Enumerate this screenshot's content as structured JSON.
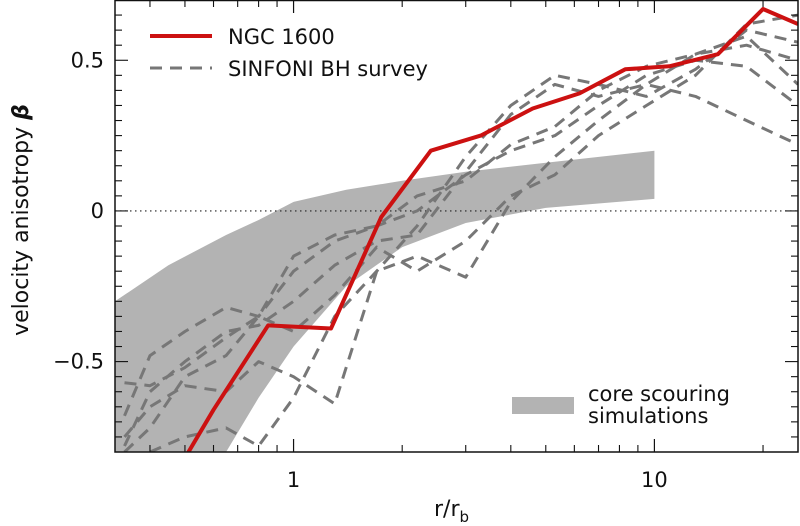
{
  "chart_data": {
    "type": "line",
    "xscale": "log",
    "xlim": [
      0.32,
      25
    ],
    "ylim": [
      -0.8,
      0.7
    ],
    "xlabel": "r/r",
    "xlabel_sub": "b",
    "ylabel_main": "velocity anisotropy ",
    "ylabel_symbol": "β",
    "x_ticks": [
      {
        "value": 1,
        "label": "1"
      },
      {
        "value": 10,
        "label": "10"
      }
    ],
    "y_ticks": [
      {
        "value": -0.5,
        "label": "−0.5"
      },
      {
        "value": 0,
        "label": "0"
      },
      {
        "value": 0.5,
        "label": "0.5"
      }
    ],
    "reference_line": {
      "y": 0,
      "style": "dotted"
    },
    "legend_position": "top-left",
    "colors": {
      "ngc": "#cc1111",
      "survey": "#777777",
      "band": "#b3b3b3"
    },
    "series": [
      {
        "name": "NGC 1600",
        "style": "solid",
        "x": [
          0.5,
          0.6,
          0.85,
          1.27,
          1.75,
          2.4,
          3.3,
          4.6,
          6.2,
          8.3,
          11,
          15,
          20,
          25
        ],
        "y": [
          -0.82,
          -0.66,
          -0.38,
          -0.39,
          -0.02,
          0.2,
          0.25,
          0.34,
          0.39,
          0.47,
          0.48,
          0.52,
          0.67,
          0.62
        ]
      },
      {
        "name": "SINFONI BH survey",
        "style": "dashed",
        "lines": [
          {
            "x": [
              0.34,
              0.4,
              0.5,
              0.65,
              0.8,
              1.0,
              1.3,
              1.7,
              2.2,
              3.0,
              4.0,
              5.3,
              7.0,
              9.5,
              13,
              18,
              25
            ],
            "y": [
              -0.78,
              -0.6,
              -0.5,
              -0.4,
              -0.38,
              -0.3,
              -0.18,
              -0.1,
              -0.08,
              0.13,
              0.32,
              0.42,
              0.38,
              0.42,
              0.52,
              0.55,
              0.5
            ]
          },
          {
            "x": [
              0.34,
              0.4,
              0.5,
              0.65,
              0.8,
              1.0,
              1.3,
              1.7,
              2.2,
              3.0,
              4.0,
              5.3,
              7.0,
              9.5,
              13,
              18,
              25
            ],
            "y": [
              -0.68,
              -0.48,
              -0.4,
              -0.32,
              -0.35,
              -0.2,
              -0.1,
              -0.05,
              0.0,
              0.12,
              0.2,
              0.25,
              0.35,
              0.45,
              0.5,
              0.48,
              0.35
            ]
          },
          {
            "x": [
              0.34,
              0.4,
              0.5,
              0.65,
              0.8,
              1.0,
              1.3,
              1.7,
              2.2,
              3.0,
              4.0,
              5.3,
              7.0,
              9.5,
              13,
              18,
              25
            ],
            "y": [
              -0.8,
              -0.72,
              -0.55,
              -0.48,
              -0.35,
              -0.15,
              -0.08,
              -0.05,
              0.05,
              0.1,
              0.22,
              0.28,
              0.4,
              0.48,
              0.52,
              0.58,
              0.42
            ]
          },
          {
            "x": [
              0.34,
              0.4,
              0.5,
              0.65,
              0.8,
              1.0,
              1.3,
              1.7,
              2.2,
              3.0,
              4.0,
              5.3,
              7.0,
              9.5,
              13,
              18,
              25
            ],
            "y": [
              -0.57,
              -0.58,
              -0.52,
              -0.42,
              -0.35,
              -0.4,
              -0.28,
              -0.12,
              -0.2,
              -0.1,
              0.05,
              0.12,
              0.25,
              0.35,
              0.45,
              0.62,
              0.65
            ]
          },
          {
            "x": [
              0.34,
              0.4,
              0.5,
              0.65,
              0.8,
              1.0,
              1.3,
              1.7,
              2.2,
              3.0,
              4.0,
              5.3,
              7.0,
              9.5,
              13,
              18,
              25
            ],
            "y": [
              -0.75,
              -0.65,
              -0.58,
              -0.6,
              -0.5,
              -0.55,
              -0.64,
              -0.2,
              -0.15,
              -0.22,
              0.03,
              0.18,
              0.3,
              0.42,
              0.38,
              0.3,
              0.22
            ]
          },
          {
            "x": [
              0.4,
              0.5,
              0.65,
              0.8,
              1.0,
              1.3,
              1.7,
              2.2,
              3.0,
              4.0,
              5.3,
              7.0,
              9.5,
              13,
              18,
              25
            ],
            "y": [
              -0.8,
              -0.75,
              -0.72,
              -0.78,
              -0.62,
              -0.35,
              -0.2,
              -0.05,
              0.18,
              0.35,
              0.45,
              0.42,
              0.38,
              0.47,
              0.6,
              0.56
            ]
          }
        ]
      }
    ],
    "band": {
      "name": "core scouring simulations",
      "x": [
        0.32,
        0.45,
        0.65,
        0.8,
        1.0,
        1.4,
        2.0,
        3.0,
        5.0,
        10
      ],
      "upper": [
        -0.3,
        -0.18,
        -0.08,
        -0.03,
        0.03,
        0.07,
        0.1,
        0.13,
        0.16,
        0.2
      ],
      "lower": [
        -0.98,
        -0.94,
        -0.8,
        -0.62,
        -0.45,
        -0.25,
        -0.12,
        -0.04,
        0.01,
        0.04
      ]
    }
  },
  "legend": {
    "ngc_label": "NGC 1600",
    "survey_label": "SINFONI BH survey",
    "band_label_line1": "core scouring",
    "band_label_line2": "simulations"
  }
}
